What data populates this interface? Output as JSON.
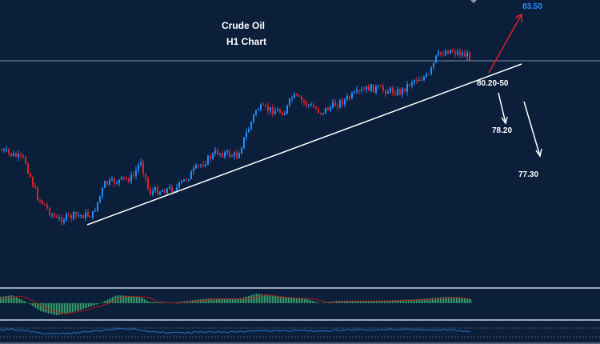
{
  "chart": {
    "title_line1": "Crude Oil",
    "title_line2": "H1 Chart",
    "target_up": "83.50",
    "support_zone": "80.20-50",
    "target_down_1": "78.20",
    "target_down_2": "77.30"
  },
  "colors": {
    "background": "#0b1f3a",
    "bull_candle": "#1e90ff",
    "bear_candle": "#e0202a",
    "up_arrow": "#e0202a",
    "up_target_text": "#2f8fff",
    "macd_histogram": "#3aa86a",
    "macd_signal": "#b01818",
    "oscillator_line": "#2a6fc0",
    "trendline": "#ffffff"
  }
}
